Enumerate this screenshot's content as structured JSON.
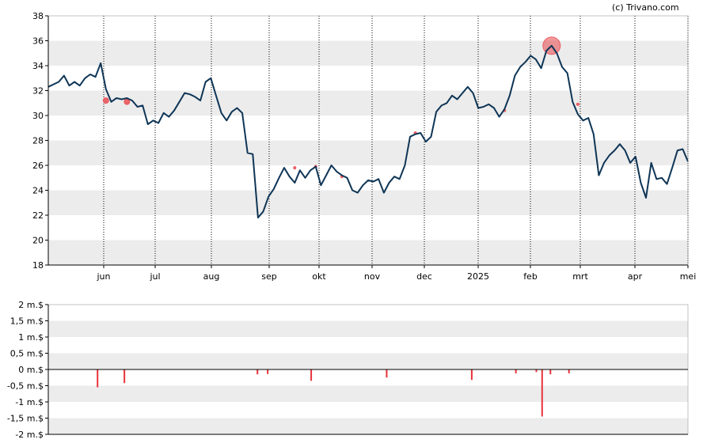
{
  "copyright": "(c) Trivano.com",
  "colors": {
    "price_line": "#0e3556",
    "band": "#ececec",
    "trade_bubble": "#e8464b",
    "bar": "#e8323a",
    "axis": "#000000"
  },
  "chart_data": [
    {
      "type": "line",
      "ylim": [
        18,
        38
      ],
      "y_ticks": [
        "18",
        "20",
        "22",
        "24",
        "26",
        "28",
        "30",
        "32",
        "34",
        "36",
        "38"
      ],
      "x_ticks": [
        "jun",
        "jul",
        "aug",
        "sep",
        "okt",
        "nov",
        "dec",
        "2025",
        "feb",
        "mrt",
        "apr",
        "mei"
      ],
      "grid": "vertical dotted at months, alternating horizontal bands",
      "series": [
        {
          "values": [
            32.3,
            32.5,
            32.7,
            33.2,
            32.4,
            32.7,
            32.4,
            33.0,
            33.3,
            33.1,
            34.2,
            32.1,
            31.1,
            31.4,
            31.3,
            31.4,
            31.2,
            30.7,
            30.8,
            29.3,
            29.6,
            29.4,
            30.2,
            29.9,
            30.4,
            31.1,
            31.8,
            31.7,
            31.5,
            31.2,
            32.7,
            33.0,
            31.6,
            30.2,
            29.6,
            30.3,
            30.6,
            30.2,
            27.0,
            26.9,
            21.8,
            22.3,
            23.5,
            24.1,
            25.0,
            25.8,
            25.1,
            24.6,
            25.6,
            25.0,
            25.6,
            25.9,
            24.4,
            25.2,
            26.0,
            25.5,
            25.2,
            25.0,
            24.0,
            23.8,
            24.4,
            24.8,
            24.7,
            24.9,
            23.8,
            24.6,
            25.1,
            24.9,
            26.0,
            28.3,
            28.5,
            28.6,
            27.9,
            28.3,
            30.3,
            30.8,
            31.0,
            31.6,
            31.3,
            31.8,
            32.3,
            31.8,
            30.6,
            30.7,
            30.9,
            30.6,
            29.9,
            30.5,
            31.6,
            33.2,
            33.9,
            34.3,
            34.8,
            34.5,
            33.8,
            35.2,
            35.6,
            35.0,
            33.9,
            33.4,
            31.1,
            30.1,
            29.6,
            29.8,
            28.5,
            25.2,
            26.2,
            26.8,
            27.2,
            27.7,
            27.2,
            26.2,
            26.7,
            24.6,
            23.4,
            26.2,
            24.9,
            25.0,
            24.5,
            25.8,
            27.2,
            27.3,
            26.3
          ]
        }
      ],
      "trades": [
        {
          "index": 11,
          "value": 31.2,
          "size": "small"
        },
        {
          "index": 15,
          "value": 31.1,
          "size": "small"
        },
        {
          "index": 47,
          "value": 25.8,
          "size": "tiny"
        },
        {
          "index": 51,
          "value": 25.9,
          "size": "tiny"
        },
        {
          "index": 56,
          "value": 25.1,
          "size": "tiny"
        },
        {
          "index": 70,
          "value": 28.6,
          "size": "tiny"
        },
        {
          "index": 87,
          "value": 30.4,
          "size": "tiny"
        },
        {
          "index": 96,
          "value": 35.6,
          "size": "large"
        },
        {
          "index": 101,
          "value": 30.9,
          "size": "tiny"
        }
      ]
    },
    {
      "type": "bar",
      "ylim": [
        -2,
        2
      ],
      "y_ticks": [
        "-2 m.$",
        "-1,5 m.$",
        "-1 m.$",
        "-0,5 m.$",
        "0 m.$",
        "0,5 m.$",
        "1 m.$",
        "1,5 m.$",
        "2 m.$"
      ],
      "x": [
        0.077,
        0.119,
        0.327,
        0.343,
        0.411,
        0.529,
        0.662,
        0.731,
        0.763,
        0.772,
        0.785,
        0.814
      ],
      "values": [
        -0.55,
        -0.42,
        -0.15,
        -0.14,
        -0.35,
        -0.25,
        -0.32,
        -0.12,
        -0.08,
        -1.45,
        -0.15,
        -0.12
      ]
    }
  ]
}
